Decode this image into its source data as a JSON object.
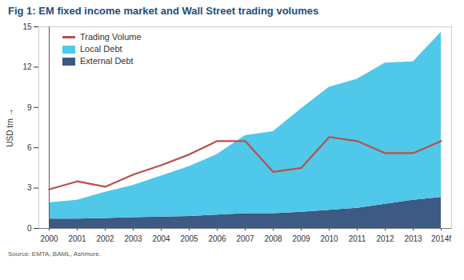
{
  "chart_data": {
    "type": "area",
    "title": "Fig 1: EM fixed income market and Wall Street trading volumes",
    "ylabel": "USD trn",
    "source": "Source: EMTA, BAML, Ashmore.",
    "categories": [
      "2000",
      "2001",
      "2002",
      "2003",
      "2004",
      "2005",
      "2006",
      "2007",
      "2008",
      "2009",
      "2010",
      "2011",
      "2012",
      "2013",
      "2014f"
    ],
    "stacked": true,
    "grid": false,
    "legend": "top-left",
    "ylim": [
      0,
      15
    ],
    "yticks": [
      0,
      3,
      6,
      9,
      12,
      15
    ],
    "series": [
      {
        "name": "Trading Volume",
        "type": "line",
        "color": "#b9504c",
        "values": [
          2.9,
          3.5,
          3.1,
          4.0,
          4.7,
          5.5,
          6.5,
          6.5,
          4.2,
          4.5,
          6.8,
          6.5,
          5.6,
          5.6,
          6.5
        ]
      },
      {
        "name": "Local Debt",
        "type": "area",
        "color": "#4fc8ea",
        "values": [
          1.2,
          1.4,
          1.95,
          2.4,
          3.05,
          3.7,
          4.5,
          5.8,
          6.1,
          7.7,
          9.15,
          9.6,
          10.5,
          10.3,
          12.3
        ]
      },
      {
        "name": "External Debt",
        "type": "area",
        "color": "#3c5a82",
        "values": [
          0.7,
          0.7,
          0.75,
          0.8,
          0.85,
          0.9,
          1.0,
          1.1,
          1.1,
          1.2,
          1.35,
          1.5,
          1.8,
          2.1,
          2.3
        ]
      }
    ]
  }
}
